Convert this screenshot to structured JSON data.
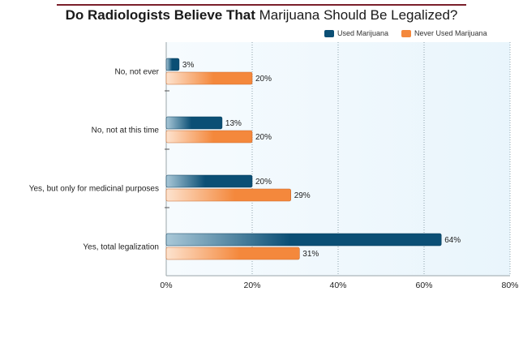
{
  "title": {
    "bold": "Do Radiologists Believe That",
    "regular": "Marijuana Should Be Legalized?"
  },
  "colors": {
    "used": "#0b4f75",
    "never_used": "#f4883c",
    "plot_bg": "#eef7fc",
    "title_rule": "#7a1f2b"
  },
  "chart_data": {
    "type": "bar",
    "orientation": "horizontal",
    "categories": [
      "No, not ever",
      "No, not at this time",
      "Yes, but only for medicinal purposes",
      "Yes, total legalization"
    ],
    "series": [
      {
        "name": "Used Marijuana",
        "values": [
          3,
          13,
          20,
          64
        ],
        "labels": [
          "3%",
          "13%",
          "20%",
          "64%"
        ]
      },
      {
        "name": "Never Used Marijuana",
        "values": [
          20,
          20,
          29,
          31
        ],
        "labels": [
          "20%",
          "20%",
          "29%",
          "31%"
        ]
      }
    ],
    "xlim": [
      0,
      80
    ],
    "ticks": [
      0,
      20,
      40,
      60,
      80
    ],
    "tick_labels": [
      "0%",
      "20%",
      "40%",
      "60%",
      "80%"
    ],
    "grid": "vertical dotted",
    "legend_position": "top-right"
  }
}
